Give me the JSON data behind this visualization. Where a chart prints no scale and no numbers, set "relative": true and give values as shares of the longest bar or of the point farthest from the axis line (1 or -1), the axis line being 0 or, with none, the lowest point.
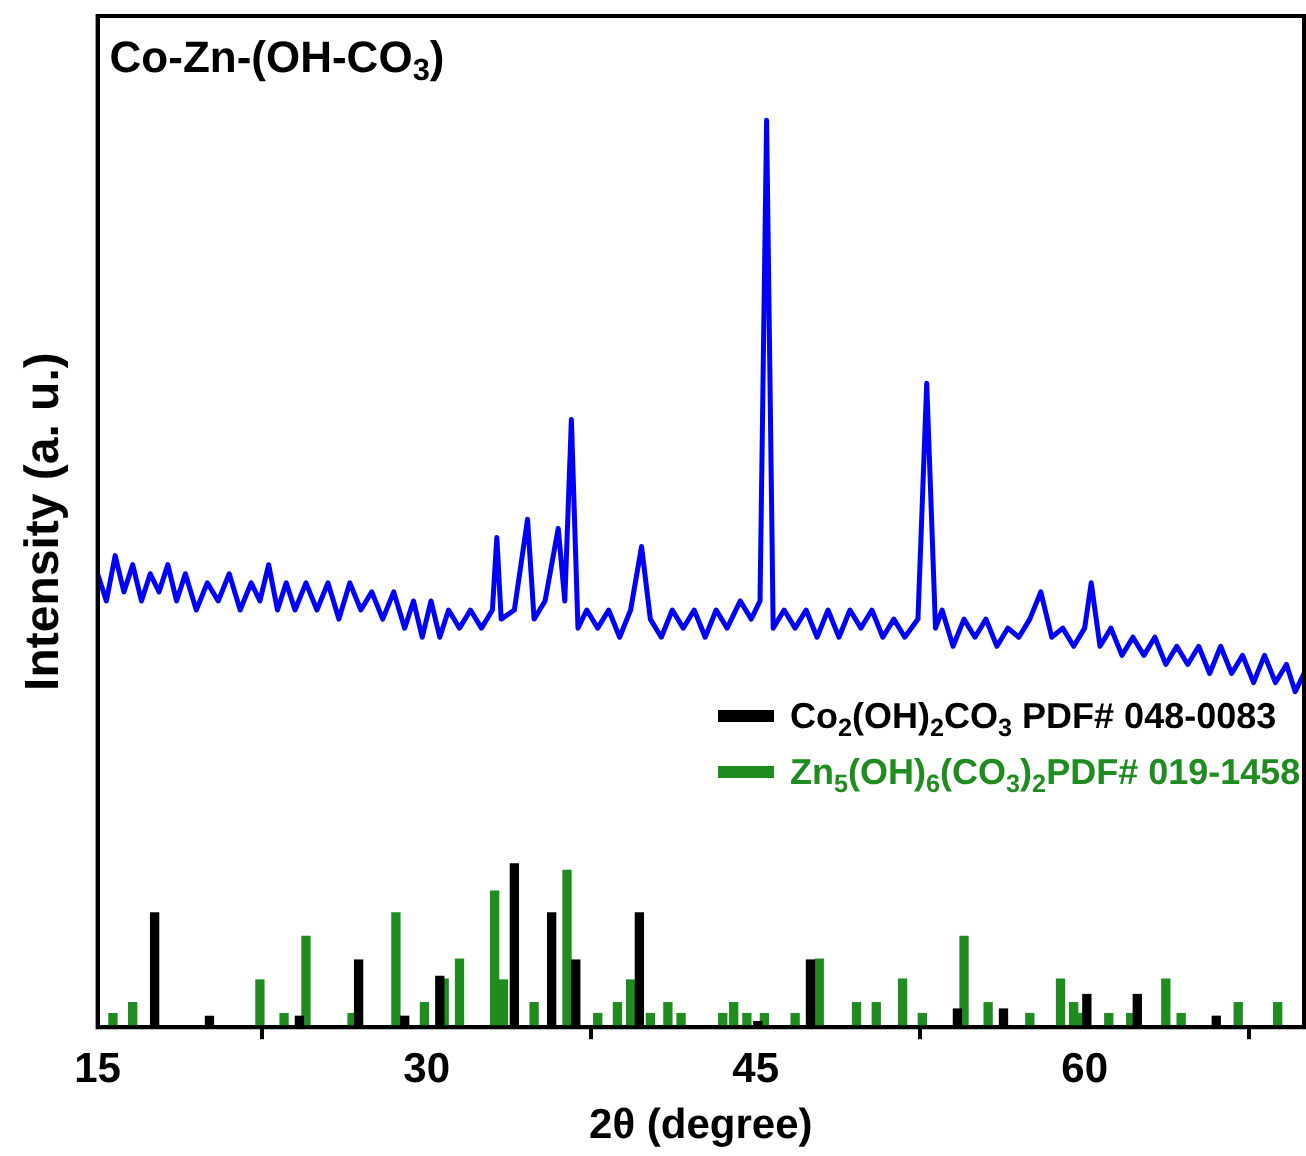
{
  "chart_data": {
    "type": "line",
    "title": "Co-Zn-(OH-CO$_{3}$)",
    "xlabel": "2θ (degree)",
    "ylabel": "Intensity (a. u.)",
    "relative": true,
    "xlim": [
      15,
      70
    ],
    "xticks": [
      15,
      30,
      45,
      60
    ],
    "grid": false,
    "legend": "right",
    "marker": "none",
    "series": [
      {
        "color": "#0000ff",
        "x": [
          15,
          15.4,
          15.8,
          16.2,
          16.6,
          17.0,
          17.4,
          17.8,
          18.2,
          18.6,
          19.0,
          19.5,
          20.0,
          20.5,
          21.0,
          21.5,
          22.0,
          22.4,
          22.8,
          23.2,
          23.6,
          24.0,
          24.5,
          25.0,
          25.5,
          26.0,
          26.5,
          27.0,
          27.5,
          28.0,
          28.5,
          29.0,
          29.4,
          29.8,
          30.2,
          30.6,
          31.0,
          31.5,
          32.0,
          32.5,
          33.0,
          33.2,
          33.4,
          34.0,
          34.6,
          34.9,
          35.4,
          36.0,
          36.3,
          36.6,
          36.9,
          37.3,
          37.8,
          38.3,
          38.8,
          39.3,
          39.8,
          40.2,
          40.7,
          41.2,
          41.7,
          42.2,
          42.7,
          43.2,
          43.7,
          44.3,
          44.8,
          45.2,
          45.5,
          45.8,
          46.3,
          46.8,
          47.3,
          47.8,
          48.3,
          48.8,
          49.3,
          49.8,
          50.3,
          50.8,
          51.3,
          51.8,
          52.4,
          52.8,
          53.2,
          53.5,
          54.0,
          54.5,
          55.0,
          55.5,
          56.0,
          56.5,
          57.0,
          57.5,
          58.0,
          58.5,
          59.0,
          59.5,
          60.0,
          60.3,
          60.7,
          61.2,
          61.7,
          62.2,
          62.7,
          63.2,
          63.7,
          64.2,
          64.7,
          65.2,
          65.7,
          66.2,
          66.7,
          67.2,
          67.7,
          68.2,
          68.7,
          69.2,
          69.6,
          70.0
        ],
        "values": [
          0.5,
          0.47,
          0.52,
          0.48,
          0.51,
          0.47,
          0.5,
          0.48,
          0.51,
          0.47,
          0.5,
          0.46,
          0.49,
          0.47,
          0.5,
          0.46,
          0.49,
          0.47,
          0.51,
          0.46,
          0.49,
          0.46,
          0.49,
          0.46,
          0.49,
          0.45,
          0.49,
          0.46,
          0.48,
          0.45,
          0.48,
          0.44,
          0.47,
          0.43,
          0.47,
          0.43,
          0.46,
          0.44,
          0.46,
          0.44,
          0.46,
          0.54,
          0.45,
          0.46,
          0.56,
          0.45,
          0.47,
          0.55,
          0.47,
          0.67,
          0.44,
          0.46,
          0.44,
          0.46,
          0.43,
          0.46,
          0.53,
          0.45,
          0.43,
          0.46,
          0.44,
          0.46,
          0.43,
          0.46,
          0.44,
          0.47,
          0.45,
          0.47,
          1.0,
          0.44,
          0.46,
          0.44,
          0.46,
          0.43,
          0.46,
          0.43,
          0.46,
          0.44,
          0.46,
          0.43,
          0.45,
          0.43,
          0.45,
          0.71,
          0.44,
          0.46,
          0.42,
          0.45,
          0.43,
          0.45,
          0.42,
          0.44,
          0.43,
          0.45,
          0.48,
          0.43,
          0.44,
          0.42,
          0.44,
          0.49,
          0.42,
          0.44,
          0.41,
          0.43,
          0.41,
          0.43,
          0.4,
          0.42,
          0.4,
          0.42,
          0.39,
          0.42,
          0.39,
          0.41,
          0.38,
          0.41,
          0.38,
          0.4,
          0.37,
          0.39
        ]
      },
      {
        "type": "bar",
        "name": "Co$_{2}$(OH)$_{2}$CO$_{3}$ PDF# 048-0083",
        "color": "#000000",
        "x": [
          17.6,
          20.1,
          24.2,
          26.9,
          29.0,
          30.6,
          34.0,
          35.7,
          36.8,
          39.7,
          45.1,
          47.5,
          54.2,
          56.3,
          60.1,
          62.4,
          66.0
        ],
        "values": [
          0.126,
          0.012,
          0.012,
          0.074,
          0.012,
          0.056,
          0.18,
          0.126,
          0.074,
          0.126,
          0.006,
          0.074,
          0.02,
          0.02,
          0.036,
          0.036,
          0.012
        ]
      },
      {
        "type": "bar",
        "name": "Zn$_{5}$(OH)$_{6}$(CO$_{3}$)$_{2}$PDF# 019-1458",
        "color": "#1e8c1e",
        "x": [
          15.7,
          16.6,
          22.4,
          23.5,
          24.5,
          26.6,
          28.6,
          29.9,
          30.8,
          31.5,
          33.1,
          33.5,
          34.9,
          36.4,
          37.8,
          38.7,
          39.3,
          40.2,
          41.0,
          41.6,
          43.5,
          44.0,
          44.6,
          45.4,
          46.8,
          47.9,
          49.6,
          50.5,
          51.7,
          52.6,
          54.5,
          55.6,
          57.5,
          58.9,
          59.5,
          59.7,
          61.1,
          62.1,
          63.7,
          64.4,
          67.0,
          68.8
        ],
        "values": [
          0.015,
          0.027,
          0.052,
          0.015,
          0.1,
          0.015,
          0.126,
          0.027,
          0.053,
          0.075,
          0.15,
          0.052,
          0.027,
          0.173,
          0.015,
          0.027,
          0.052,
          0.015,
          0.027,
          0.015,
          0.015,
          0.027,
          0.015,
          0.015,
          0.015,
          0.075,
          0.027,
          0.027,
          0.053,
          0.015,
          0.1,
          0.027,
          0.015,
          0.053,
          0.027,
          0.015,
          0.015,
          0.015,
          0.053,
          0.015,
          0.027,
          0.027
        ]
      }
    ]
  }
}
